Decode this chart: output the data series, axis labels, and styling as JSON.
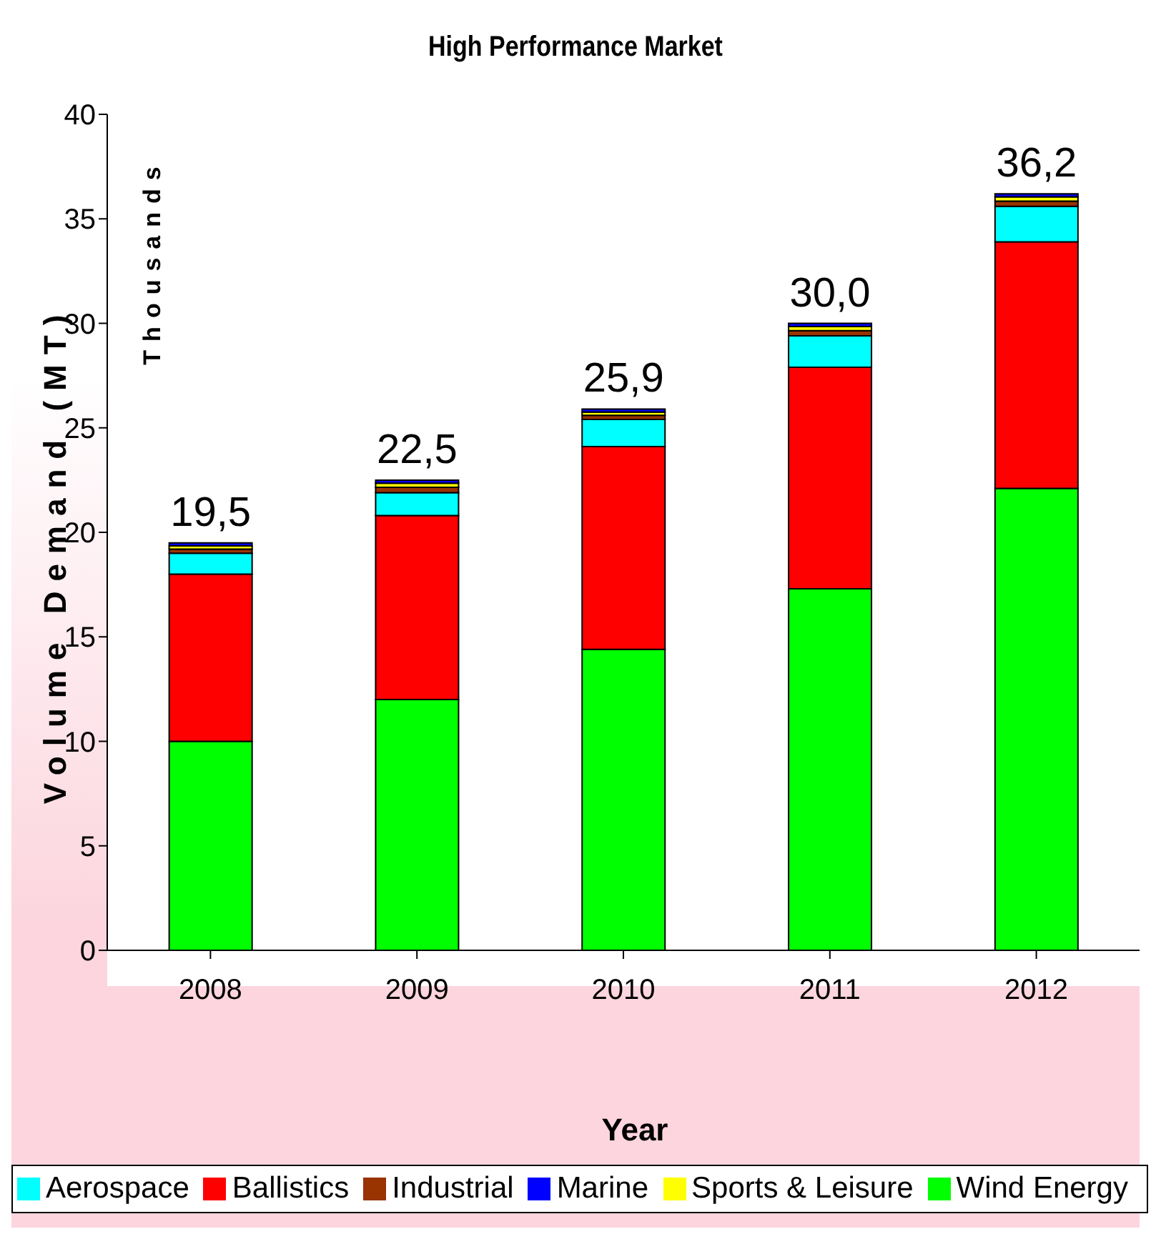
{
  "chart_data": {
    "type": "bar",
    "title": "High Performance Market",
    "xlabel": "Year",
    "ylabel": "Volume Demand (MT)",
    "annotations": [
      "Thousands"
    ],
    "categories": [
      "2008",
      "2009",
      "2010",
      "2011",
      "2012"
    ],
    "stacked": true,
    "series": [
      {
        "name": "Wind Energy",
        "color": "#00ff00",
        "values": [
          10,
          12,
          14.4,
          17.3,
          22.1
        ]
      },
      {
        "name": "Ballistics",
        "color": "#ff0000",
        "values": [
          8,
          8.8,
          9.7,
          10.6,
          11.8
        ]
      },
      {
        "name": "Aerospace",
        "color": "#00ffff",
        "values": [
          1,
          1.1,
          1.3,
          1.5,
          1.7
        ]
      },
      {
        "name": "Industrial",
        "color": "#993300",
        "values": [
          0.2,
          0.25,
          0.2,
          0.25,
          0.25
        ]
      },
      {
        "name": "Sports & Leisure",
        "color": "#ffff00",
        "values": [
          0.15,
          0.2,
          0.15,
          0.2,
          0.2
        ]
      },
      {
        "name": "Marine",
        "color": "#0000ff",
        "values": [
          0.15,
          0.15,
          0.15,
          0.15,
          0.15
        ]
      }
    ],
    "totals": [
      "19,5",
      "22,5",
      "25,9",
      "30,0",
      "36,2"
    ],
    "ylim": [
      0,
      40
    ],
    "yticks": [
      0,
      5,
      10,
      15,
      20,
      25,
      30,
      35,
      40
    ],
    "grid": false,
    "legend": "bottom"
  }
}
